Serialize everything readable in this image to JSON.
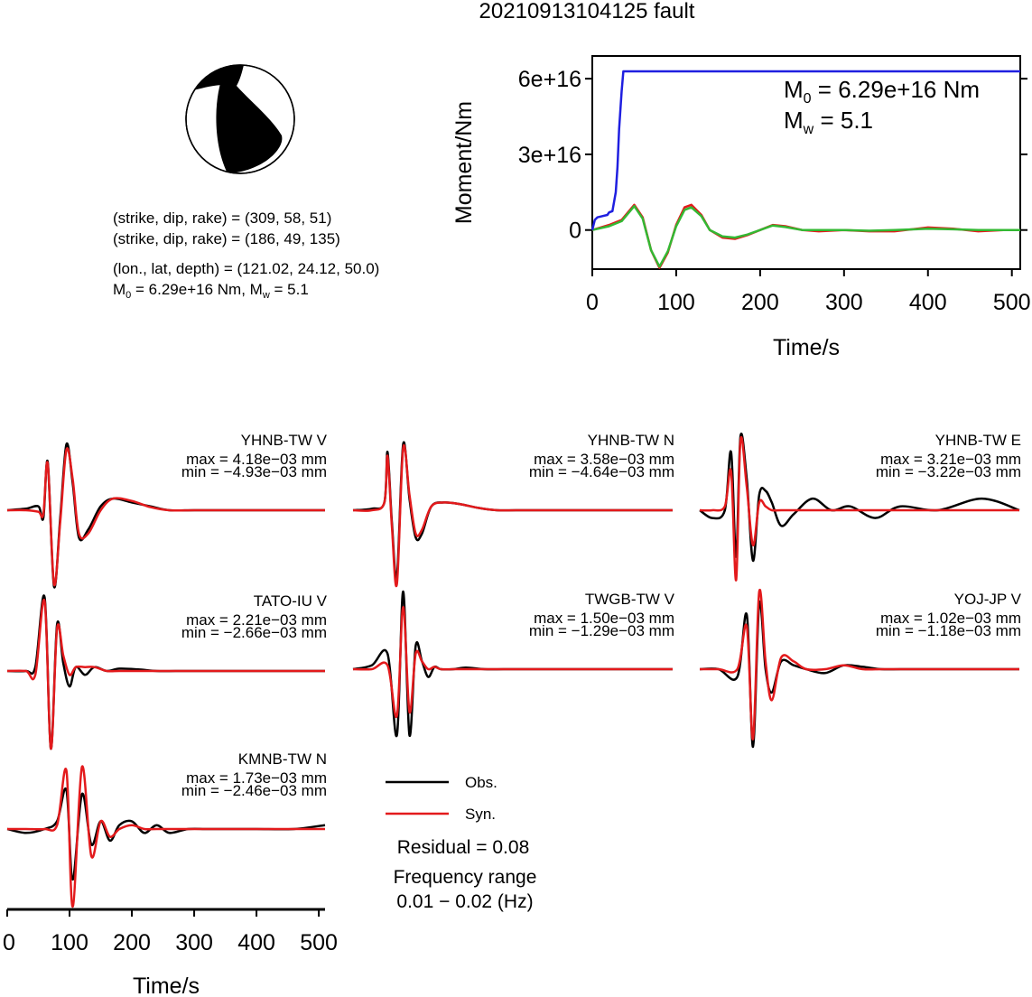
{
  "title": "20210913104125 fault",
  "focal": {
    "line1": "(strike, dip, rake) = (309, 58, 51)",
    "line2": "(strike, dip, rake) = (186, 49, 135)",
    "line3": "(lon., lat, depth) = (121.02, 24.12, 50.0)",
    "m0_label": "M",
    "m0_sub": "0",
    "m0_value": " = 6.29e+16 Nm, M",
    "mw_sub": "w",
    "mw_value": " = 5.1"
  },
  "moment": {
    "ylabel": "Moment/Nm",
    "xlabel": "Time/s",
    "m0_prefix": "M",
    "m0_sub": "0",
    "m0_text": " = 6.29e+16 Nm",
    "mw_prefix": "M",
    "mw_sub": "w",
    "mw_text": " = 5.1"
  },
  "waveform_axis": {
    "xlabel": "Time/s"
  },
  "legend": {
    "obs": "Obs.",
    "syn": "Syn.",
    "residual": "Residual = 0.08",
    "freq_title": "Frequency range",
    "freq_value": "0.01 − 0.02 (Hz)"
  },
  "colors": {
    "obs": "#000000",
    "syn": "#e31a1c",
    "moment_rate": "#1f1fe0",
    "green": "#33b833"
  },
  "chart_data": [
    {
      "type": "line",
      "name": "moment",
      "xlim": [
        0,
        510
      ],
      "ylim": [
        -1.55e+16,
        6.9e+16
      ],
      "xticks": [
        0,
        100,
        200,
        300,
        400,
        500
      ],
      "yticks": [
        0,
        3e+16,
        6e+16
      ],
      "ytick_labels": [
        "0",
        "3e+16",
        "6e+16"
      ],
      "series": [
        {
          "color": "#1f1fe0",
          "x": [
            0,
            3,
            6,
            12,
            18,
            20,
            24,
            28,
            30,
            32,
            35,
            37,
            510
          ],
          "y": [
            0,
            4000000000000000.0,
            5000000000000000.0,
            5500000000000000.0,
            6000000000000000.0,
            7000000000000000.0,
            7500000000000000.0,
            1.5e+16,
            2.5e+16,
            4e+16,
            5.5e+16,
            6.29e+16,
            6.29e+16
          ]
        },
        {
          "color": "#e31a1c",
          "x": [
            0,
            20,
            35,
            50,
            60,
            70,
            80,
            90,
            100,
            110,
            118,
            130,
            140,
            155,
            170,
            185,
            200,
            215,
            230,
            250,
            270,
            300,
            330,
            360,
            400,
            430,
            460,
            490,
            510
          ],
          "y": [
            0,
            2000000000000000.0,
            4000000000000000.0,
            1e+16,
            5000000000000000.0,
            -8000000000000000.0,
            -1.5e+16,
            -9000000000000000.0,
            2000000000000000.0,
            9000000000000000.0,
            1e+16,
            6000000000000000.0,
            0,
            -3000000000000000.0,
            -3500000000000000.0,
            -2000000000000000.0,
            0,
            2000000000000000.0,
            1500000000000000.0,
            0,
            -500000000000000.0,
            0,
            -500000000000000.0,
            -500000000000000.0,
            1000000000000000.0,
            500000000000000.0,
            -500000000000000.0,
            0,
            0
          ]
        },
        {
          "color": "#33b833",
          "x": [
            0,
            20,
            35,
            50,
            60,
            70,
            80,
            90,
            100,
            110,
            118,
            130,
            140,
            155,
            170,
            185,
            200,
            215,
            230,
            250,
            270,
            300,
            330,
            360,
            400,
            430,
            460,
            490,
            510
          ],
          "y": [
            0,
            1500000000000000.0,
            3500000000000000.0,
            9500000000000000.0,
            4500000000000000.0,
            -8000000000000000.0,
            -1.45e+16,
            -8500000000000000.0,
            1500000000000000.0,
            8000000000000000.0,
            9000000000000000.0,
            5500000000000000.0,
            0,
            -2500000000000000.0,
            -3000000000000000.0,
            -1800000000000000.0,
            0,
            1800000000000000.0,
            1200000000000000.0,
            0,
            0,
            0,
            -300000000000000.0,
            0,
            500000000000000.0,
            300000000000000.0,
            0,
            0,
            0
          ]
        }
      ]
    },
    {
      "type": "line",
      "name": "waveforms",
      "xlim": [
        0,
        510
      ],
      "xticks": [
        0,
        100,
        200,
        300,
        400,
        500
      ],
      "ylim": [
        -1,
        1
      ],
      "stations": [
        {
          "label": "YHNB-TW V",
          "max": "max = 4.18e−03 mm",
          "min": "min = −4.93e−03 mm",
          "obs": {
            "x": [
              0,
              30,
              50,
              58,
              65,
              75,
              85,
              95,
              105,
              115,
              130,
              150,
              170,
              200,
              230,
              260,
              300,
              350,
              400,
              450,
              510
            ],
            "y": [
              0,
              0.02,
              0.05,
              -0.1,
              0.62,
              -0.98,
              -0.1,
              0.85,
              0.35,
              -0.35,
              -0.25,
              0.05,
              0.15,
              0.1,
              0.05,
              0,
              0,
              0,
              0,
              0,
              0
            ]
          },
          "syn": {
            "x": [
              0,
              30,
              50,
              58,
              65,
              75,
              85,
              95,
              105,
              115,
              130,
              150,
              170,
              200,
              230,
              260,
              300,
              350,
              400,
              450,
              510
            ],
            "y": [
              0,
              0,
              -0.02,
              -0.05,
              0.6,
              -0.95,
              -0.15,
              0.78,
              0.4,
              -0.3,
              -0.3,
              0.0,
              0.15,
              0.12,
              0.04,
              0,
              0,
              0,
              0,
              0,
              0
            ]
          }
        },
        {
          "label": "YHNB-TW N",
          "max": "max = 3.58e−03 mm",
          "min": "min = −4.64e−03 mm",
          "obs": {
            "x": [
              0,
              30,
              50,
              55,
              62,
              70,
              80,
              90,
              100,
              110,
              125,
              145,
              170,
              200,
              230,
              260,
              300,
              350,
              400,
              450,
              510
            ],
            "y": [
              0,
              0.02,
              0.1,
              0.75,
              -0.15,
              -0.85,
              0.85,
              0.15,
              -0.35,
              -0.3,
              0.05,
              0.1,
              0.08,
              0.03,
              0,
              0,
              0,
              0,
              0,
              0,
              0
            ]
          },
          "syn": {
            "x": [
              0,
              30,
              50,
              55,
              62,
              70,
              80,
              90,
              100,
              110,
              125,
              145,
              170,
              200,
              230,
              260,
              300,
              350,
              400,
              450,
              510
            ],
            "y": [
              0,
              0,
              0.1,
              0.7,
              -0.2,
              -0.95,
              0.8,
              0.2,
              -0.3,
              -0.25,
              0.05,
              0.1,
              0.08,
              0.03,
              0,
              0,
              0,
              0,
              0,
              0,
              0
            ]
          }
        },
        {
          "label": "YHNB-TW E",
          "max": "max = 3.21e−03 mm",
          "min": "min = −3.22e−03 mm",
          "obs": {
            "x": [
              0,
              20,
              40,
              50,
              58,
              65,
              75,
              85,
              95,
              105,
              115,
              130,
              150,
              180,
              210,
              240,
              280,
              320,
              380,
              450,
              510
            ],
            "y": [
              0,
              -0.1,
              0.0,
              0.75,
              -0.6,
              0.95,
              0.4,
              -0.65,
              0.2,
              0.25,
              0.1,
              -0.2,
              -0.05,
              0.15,
              0.0,
              0.05,
              -0.1,
              0.05,
              0.0,
              0.15,
              0
            ]
          },
          "syn": {
            "x": [
              0,
              20,
              40,
              50,
              58,
              65,
              75,
              85,
              95,
              105,
              115,
              130,
              150,
              180,
              210,
              240,
              280,
              320,
              380,
              450,
              510
            ],
            "y": [
              0,
              0,
              0.05,
              0.5,
              -0.9,
              0.9,
              0.3,
              -0.45,
              0.1,
              0.05,
              0,
              0,
              0,
              0,
              0,
              0,
              0,
              0,
              0,
              0,
              0
            ]
          }
        },
        {
          "label": "TATO-IU V",
          "max": "max = 2.21e−03 mm",
          "min": "min = −2.66e−03 mm",
          "obs": {
            "x": [
              0,
              30,
              45,
              60,
              70,
              80,
              90,
              100,
              110,
              125,
              140,
              160,
              180,
              210,
              240,
              270,
              300,
              350,
              400,
              460,
              510
            ],
            "y": [
              0,
              0,
              0.05,
              0.95,
              -1.0,
              0.6,
              0.1,
              -0.2,
              0.05,
              -0.05,
              0.05,
              0.0,
              0.03,
              0.02,
              0,
              0,
              0,
              0,
              0,
              0,
              0
            ]
          },
          "syn": {
            "x": [
              0,
              30,
              45,
              60,
              70,
              80,
              90,
              100,
              110,
              125,
              140,
              160,
              180,
              210,
              240,
              270,
              300,
              350,
              400,
              460,
              510
            ],
            "y": [
              0,
              0,
              -0.05,
              0.9,
              -1.0,
              0.55,
              0.2,
              -0.05,
              0.05,
              0.05,
              0.05,
              0.0,
              0,
              0,
              0,
              0,
              0,
              0,
              0,
              0,
              0
            ]
          }
        },
        {
          "label": "TWGB-TW V",
          "max": "max = 1.50e−03 mm",
          "min": "min = −1.29e−03 mm",
          "obs": {
            "x": [
              0,
              30,
              55,
              70,
              80,
              90,
              100,
              110,
              120,
              130,
              140,
              160,
              180,
              210,
              240,
              270,
              300,
              350,
              400,
              460,
              510
            ],
            "y": [
              0,
              0.05,
              0.2,
              -0.85,
              1.0,
              -0.85,
              0.3,
              0.1,
              -0.1,
              0.03,
              0,
              0,
              0.02,
              0,
              0,
              0,
              0,
              0,
              0,
              0,
              0
            ]
          },
          "syn": {
            "x": [
              0,
              30,
              55,
              70,
              80,
              90,
              100,
              110,
              120,
              130,
              140,
              160,
              180,
              210,
              240,
              270,
              300,
              350,
              400,
              460,
              510
            ],
            "y": [
              0,
              0,
              0.05,
              -0.6,
              0.8,
              -0.55,
              0.2,
              0.1,
              0,
              0.03,
              0,
              0,
              0,
              0,
              0,
              0,
              0,
              0,
              0,
              0,
              0
            ]
          }
        },
        {
          "label": "YOJ-JP V",
          "max": "max = 1.02e−03 mm",
          "min": "min = −1.18e−03 mm",
          "obs": {
            "x": [
              0,
              30,
              60,
              75,
              85,
              95,
              105,
              115,
              130,
              150,
              170,
              200,
              230,
              260,
              290,
              320,
              360,
              400,
              450,
              490,
              510
            ],
            "y": [
              0,
              0,
              -0.1,
              0.7,
              -1.0,
              0.85,
              0.0,
              -0.3,
              0.1,
              0.05,
              0,
              -0.05,
              0.05,
              0.03,
              0,
              0,
              0,
              0,
              0,
              0,
              0
            ]
          },
          "syn": {
            "x": [
              0,
              30,
              60,
              75,
              85,
              95,
              105,
              115,
              130,
              150,
              170,
              200,
              230,
              260,
              290,
              320,
              360,
              400,
              450,
              490,
              510
            ],
            "y": [
              0,
              0,
              0.0,
              0.55,
              -0.9,
              1.0,
              0.1,
              -0.4,
              0.15,
              0.1,
              0,
              0,
              0.05,
              0,
              0,
              0,
              0,
              0,
              0,
              0,
              0
            ]
          }
        },
        {
          "label": "KMNB-TW N",
          "max": "max = 1.73e−03 mm",
          "min": "min = −2.46e−03 mm",
          "obs": {
            "x": [
              0,
              30,
              60,
              80,
              95,
              105,
              120,
              135,
              150,
              165,
              180,
              200,
              220,
              240,
              260,
              290,
              320,
              350,
              400,
              460,
              510
            ],
            "y": [
              0,
              -0.05,
              0,
              0.1,
              0.5,
              -0.65,
              0.45,
              -0.2,
              0.1,
              -0.15,
              0.05,
              0.1,
              -0.05,
              0.05,
              -0.05,
              0,
              0,
              0,
              0,
              0,
              0.05
            ]
          },
          "syn": {
            "x": [
              0,
              30,
              60,
              80,
              95,
              105,
              120,
              135,
              150,
              165,
              180,
              200,
              220,
              240,
              260,
              290,
              320,
              350,
              400,
              460,
              510
            ],
            "y": [
              0,
              0,
              0,
              0.05,
              0.75,
              -1.0,
              0.8,
              -0.35,
              0.1,
              -0.1,
              0,
              0.05,
              0,
              0,
              0,
              0,
              0,
              0,
              0,
              0,
              0
            ]
          }
        }
      ]
    }
  ]
}
